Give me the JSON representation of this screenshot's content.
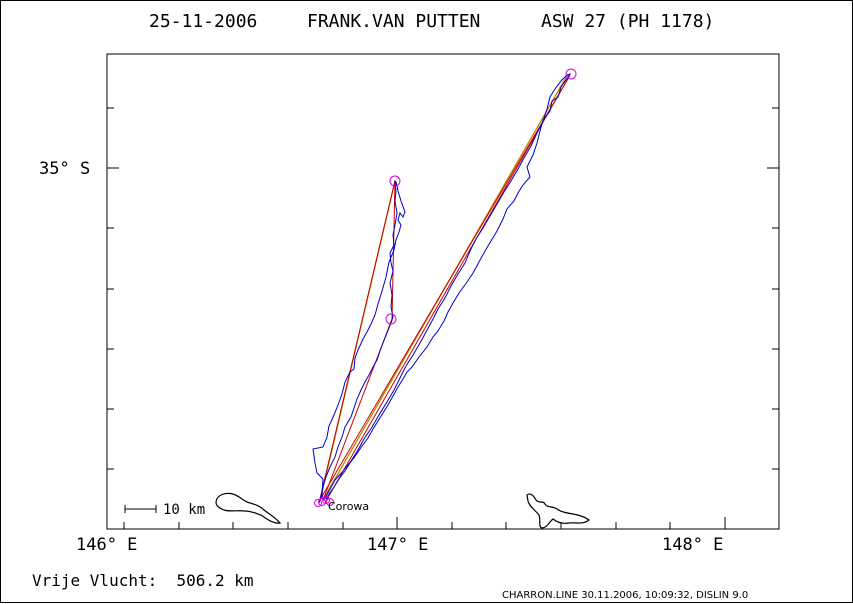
{
  "header": {
    "date": "25-11-2006",
    "pilot": "FRANK.VAN PUTTEN",
    "glider": "ASW 27 (PH 1178)"
  },
  "map": {
    "lat_label": "35° S",
    "lon_labels": [
      "146° E",
      "147° E",
      "148° E"
    ],
    "scale_label": "10 km",
    "town_label": "Corowa",
    "colors": {
      "track": "#0000cc",
      "task_leg": "#cc0000",
      "olc_leg": "#bb8800",
      "turnpoint": "#dd00dd",
      "river": "#000000"
    }
  },
  "footer": {
    "distance_text": "Vrije Vlucht:  506.2 km",
    "credits": "CHARRON.LINE 30.11.2006, 10:09:32, DISLIN 9.0"
  }
}
